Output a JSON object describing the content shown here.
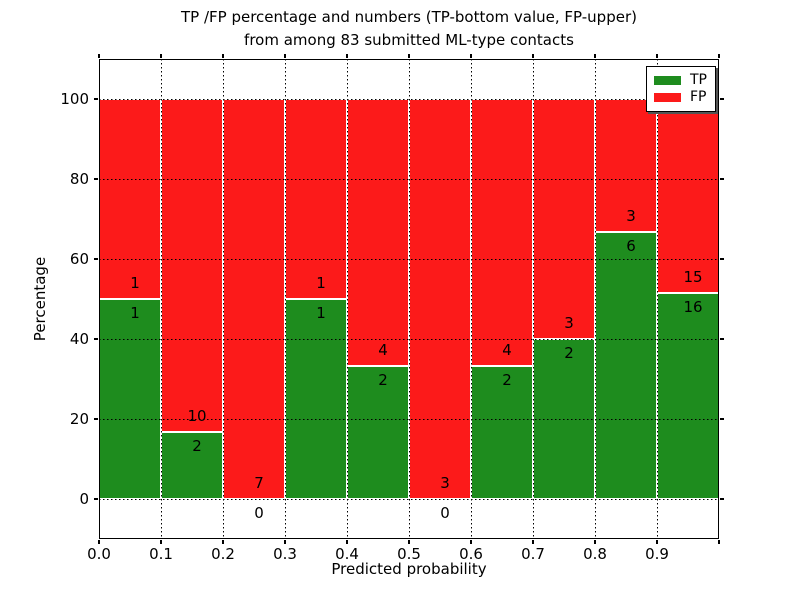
{
  "figure_title_lines": [
    "TP /FP percentage and numbers (TP-bottom value, FP-upper)",
    "from among 83 submitted ML-type contacts"
  ],
  "colors": {
    "tp_green": "#1e8c1e",
    "fp_red": "#fc1a1a",
    "background": "#ffffff",
    "axis": "#000000",
    "grid": "#000000"
  },
  "chart_data": {
    "type": "bar",
    "stacked": true,
    "orientation": "vertical",
    "normalized_to_percent": 100,
    "title_lines": [
      "TP /FP percentage and numbers (TP-bottom value, FP-upper)",
      "from among 83 submitted ML-type contacts"
    ],
    "xlabel": "Predicted probability",
    "ylabel": "Percentage",
    "total_contacts": 83,
    "xlim": [
      0.0,
      1.0
    ],
    "ylim": [
      -10,
      110
    ],
    "bin_width": 0.1,
    "x_bin_edges": [
      0.0,
      0.1,
      0.2,
      0.3,
      0.4,
      0.5,
      0.6,
      0.7,
      0.8,
      0.9,
      1.0
    ],
    "x_tick_labels": [
      "0.0",
      "0.1",
      "0.2",
      "0.3",
      "0.4",
      "0.5",
      "0.6",
      "0.7",
      "0.8",
      "0.9"
    ],
    "y_ticks": [
      0,
      20,
      40,
      60,
      80,
      100
    ],
    "y_tick_labels": [
      "0",
      "20",
      "40",
      "60",
      "80",
      "100"
    ],
    "grid": {
      "style": "dotted",
      "color": "#000000",
      "vertical": true,
      "horizontal": true
    },
    "series": [
      {
        "name": "TP",
        "color": "#1e8c1e",
        "counts": [
          1,
          2,
          0,
          1,
          2,
          0,
          2,
          2,
          6,
          16
        ],
        "percent_of_bin": [
          50.0,
          16.7,
          0.0,
          50.0,
          33.3,
          0.0,
          33.3,
          40.0,
          66.7,
          51.6
        ]
      },
      {
        "name": "FP",
        "color": "#fc1a1a",
        "counts": [
          1,
          10,
          7,
          1,
          4,
          3,
          4,
          3,
          3,
          15
        ],
        "percent_of_bin": [
          50.0,
          83.3,
          100.0,
          50.0,
          66.7,
          100.0,
          66.7,
          60.0,
          33.3,
          48.4
        ]
      }
    ],
    "legend": {
      "position": "upper right",
      "items": [
        "TP",
        "FP"
      ]
    }
  }
}
